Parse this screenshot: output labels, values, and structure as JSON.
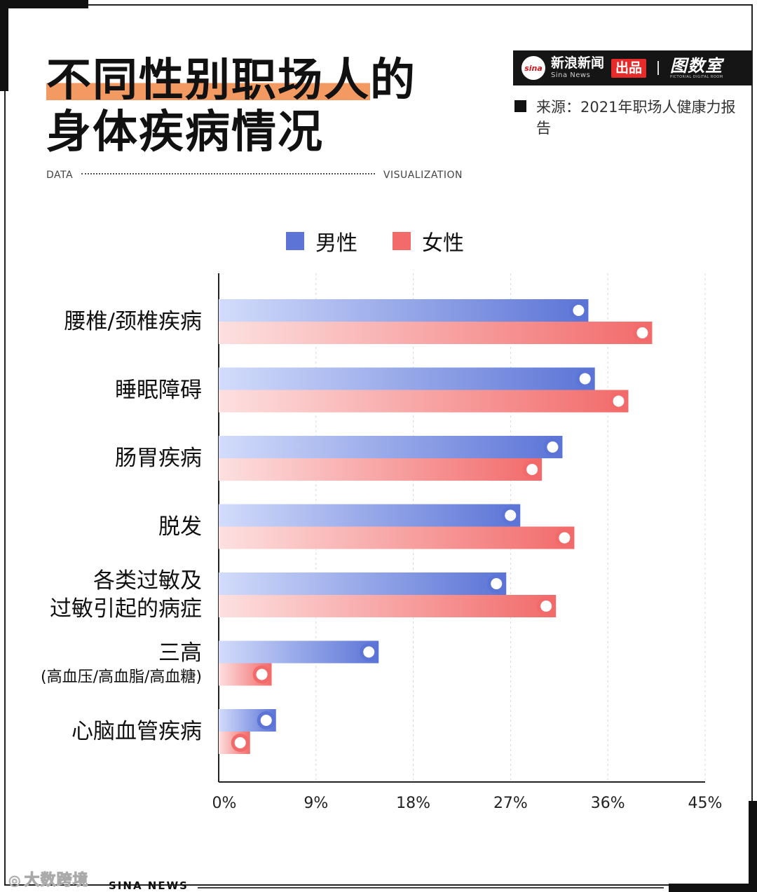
{
  "header": {
    "title_line1_highlight": "不同性别职场人",
    "title_line1_rest": "的",
    "title_line2": "身体疾病情况",
    "data_label": "DATA",
    "viz_label": "VISUALIZATION"
  },
  "brand": {
    "logo_text": "sina",
    "name_cn": "新浪新闻",
    "name_en": "Sina News",
    "badge": "出品",
    "partner_cn": "图数室",
    "partner_en": "PICTORIAL DIGITAL ROOM"
  },
  "source": {
    "text": "来源：2021年职场人健康力报告"
  },
  "footer": {
    "watermark": "大数跨境",
    "sina_news": "SINA NEWS"
  },
  "colors": {
    "male": "#5b74d6",
    "female": "#f26a6a",
    "highlight": "#f39a63"
  },
  "chart_data": {
    "type": "bar",
    "orientation": "horizontal",
    "legend": [
      "男性",
      "女性"
    ],
    "legend_position": "top",
    "categories": [
      {
        "label": "腰椎/颈椎疾病",
        "sub": ""
      },
      {
        "label": "睡眠障碍",
        "sub": ""
      },
      {
        "label": "肠胃疾病",
        "sub": ""
      },
      {
        "label": "脱发",
        "sub": ""
      },
      {
        "label": "各类过敏及\n过敏引起的病症",
        "sub": ""
      },
      {
        "label": "三高",
        "sub": "(高血压/高血脂/高血糖)"
      },
      {
        "label": "心脑血管疾病",
        "sub": ""
      }
    ],
    "series": [
      {
        "name": "男性",
        "values": [
          34.2,
          34.8,
          31.8,
          27.9,
          26.6,
          14.8,
          5.3
        ]
      },
      {
        "name": "女性",
        "values": [
          40.1,
          37.9,
          29.9,
          32.9,
          31.2,
          4.9,
          2.9
        ]
      }
    ],
    "xlim": [
      0,
      45
    ],
    "xticks": [
      "0%",
      "9%",
      "18%",
      "27%",
      "36%",
      "45%"
    ],
    "tick_values": [
      0,
      9,
      18,
      27,
      36,
      45
    ],
    "grid": true
  }
}
